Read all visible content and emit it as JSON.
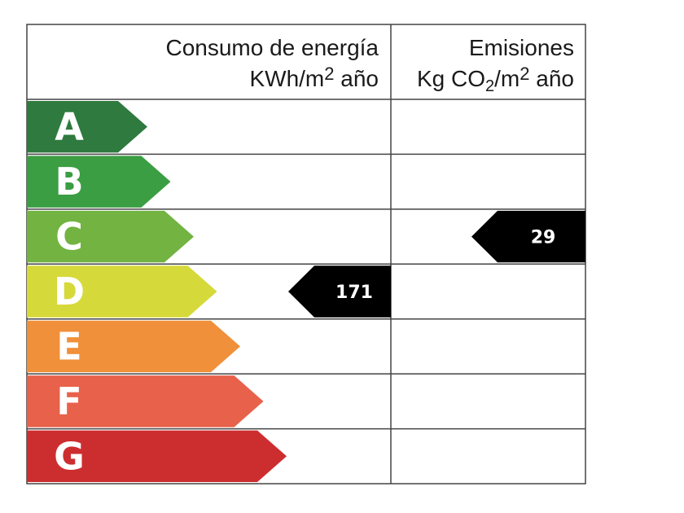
{
  "header": {
    "energy_title": "Consumo de energía",
    "energy_unit_base": "KWh/m",
    "energy_unit_exp": "2",
    "energy_unit_tail": " año",
    "emissions_title": "Emisiones",
    "emissions_unit_base": "Kg CO",
    "emissions_unit_sub": "2",
    "emissions_unit_mid": "/m",
    "emissions_unit_exp": "2",
    "emissions_unit_tail": " año"
  },
  "ratings": [
    {
      "letter": "A",
      "color": "#2e7a3f"
    },
    {
      "letter": "B",
      "color": "#3b9e43"
    },
    {
      "letter": "C",
      "color": "#72b341"
    },
    {
      "letter": "D",
      "color": "#d6d93a"
    },
    {
      "letter": "E",
      "color": "#f0903a"
    },
    {
      "letter": "F",
      "color": "#e8614a"
    },
    {
      "letter": "G",
      "color": "#cc2e2f"
    }
  ],
  "energy_indicator": {
    "rating": "D",
    "value": "171"
  },
  "emissions_indicator": {
    "rating": "C",
    "value": "29"
  }
}
